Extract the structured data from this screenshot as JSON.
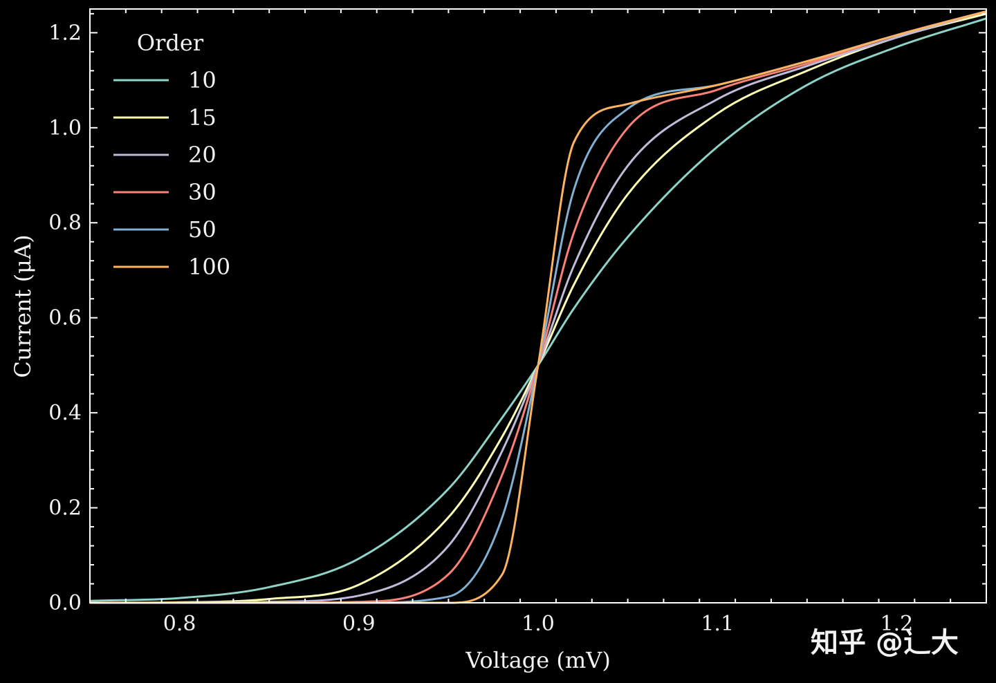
{
  "chart_data": {
    "type": "line",
    "title": "",
    "xlabel": "Voltage (mV)",
    "ylabel": "Current (μA)",
    "xlim": [
      0.75,
      1.25
    ],
    "ylim": [
      0.0,
      1.25
    ],
    "x_ticks": [
      0.8,
      0.9,
      1.0,
      1.1,
      1.2
    ],
    "x_tick_labels": [
      "0.8",
      "0.9",
      "1.0",
      "1.1",
      "1.2"
    ],
    "y_ticks": [
      0.0,
      0.2,
      0.4,
      0.6,
      0.8,
      1.0,
      1.2
    ],
    "y_tick_labels": [
      "0.0",
      "0.2",
      "0.4",
      "0.6",
      "0.8",
      "1.0",
      "1.2"
    ],
    "grid": false,
    "legend": {
      "title": "Order",
      "placement": "top-left"
    },
    "x": [
      0.75,
      0.8,
      0.85,
      0.9,
      0.95,
      0.98,
      1.0,
      1.02,
      1.05,
      1.1,
      1.15,
      1.2,
      1.25
    ],
    "series": [
      {
        "name": "10",
        "color": "#8dd3c7",
        "values": [
          0.004,
          0.01,
          0.033,
          0.093,
          0.24,
          0.39,
          0.5,
          0.62,
          0.77,
          0.96,
          1.09,
          1.17,
          1.23
        ]
      },
      {
        "name": "15",
        "color": "#feffb3",
        "values": [
          0.0,
          0.001,
          0.008,
          0.038,
          0.18,
          0.35,
          0.5,
          0.67,
          0.86,
          1.03,
          1.12,
          1.19,
          1.24
        ]
      },
      {
        "name": "20",
        "color": "#bfbbd9",
        "values": [
          0.0,
          0.0,
          0.002,
          0.015,
          0.12,
          0.32,
          0.5,
          0.71,
          0.92,
          1.06,
          1.13,
          1.19,
          1.245
        ]
      },
      {
        "name": "30",
        "color": "#fa8174",
        "values": [
          0.0,
          0.0,
          0.0,
          0.002,
          0.06,
          0.27,
          0.5,
          0.78,
          1.0,
          1.08,
          1.135,
          1.195,
          1.245
        ]
      },
      {
        "name": "50",
        "color": "#81b1d2",
        "values": [
          0.0,
          0.0,
          0.0,
          0.0,
          0.013,
          0.18,
          0.5,
          0.87,
          1.04,
          1.09,
          1.14,
          1.195,
          1.245
        ]
      },
      {
        "name": "100",
        "color": "#fdb462",
        "values": [
          0.0,
          0.0,
          0.0,
          0.0,
          0.0,
          0.06,
          0.5,
          0.97,
          1.05,
          1.09,
          1.14,
          1.195,
          1.245
        ]
      }
    ]
  },
  "watermark": {
    "text": "知乎 @辶大"
  }
}
